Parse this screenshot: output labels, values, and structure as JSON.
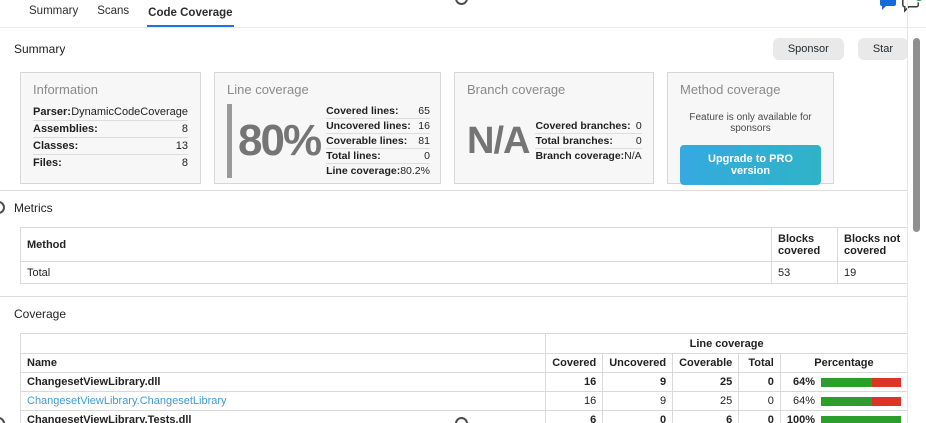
{
  "tabs": [
    {
      "label": "Summary",
      "active": false
    },
    {
      "label": "Scans",
      "active": false
    },
    {
      "label": "Code Coverage",
      "active": true
    }
  ],
  "summary_section": {
    "title": "Summary",
    "sponsor_button": "Sponsor",
    "star_button": "Star",
    "cards": {
      "information": {
        "title": "Information",
        "rows": [
          {
            "label": "Parser:",
            "value": "DynamicCodeCoverage"
          },
          {
            "label": "Assemblies:",
            "value": "8"
          },
          {
            "label": "Classes:",
            "value": "13"
          },
          {
            "label": "Files:",
            "value": "8"
          }
        ]
      },
      "line_coverage": {
        "title": "Line coverage",
        "big_value": "80%",
        "rows": [
          {
            "label": "Covered lines:",
            "value": "65"
          },
          {
            "label": "Uncovered lines:",
            "value": "16"
          },
          {
            "label": "Coverable lines:",
            "value": "81"
          },
          {
            "label": "Total lines:",
            "value": "0"
          },
          {
            "label": "Line coverage:",
            "value": "80.2%"
          }
        ]
      },
      "branch_coverage": {
        "title": "Branch coverage",
        "big_value": "N/A",
        "rows": [
          {
            "label": "Covered branches:",
            "value": "0"
          },
          {
            "label": "Total branches:",
            "value": "0"
          },
          {
            "label": "Branch coverage:",
            "value": "N/A"
          }
        ]
      },
      "method_coverage": {
        "title": "Method coverage",
        "notice": "Feature is only available for sponsors",
        "upgrade_button": "Upgrade to PRO version"
      }
    }
  },
  "metrics_section": {
    "title": "Metrics",
    "table": {
      "headers": [
        "Method",
        "Blocks covered",
        "Blocks not covered"
      ],
      "rows": [
        {
          "method": "Total",
          "blocks_covered": "53",
          "blocks_not_covered": "19"
        }
      ]
    }
  },
  "coverage_section": {
    "title": "Coverage",
    "table": {
      "group_header": "Line coverage",
      "headers": [
        "Name",
        "Covered",
        "Uncovered",
        "Coverable",
        "Total",
        "Percentage"
      ],
      "rows": [
        {
          "name": "ChangesetViewLibrary.dll",
          "type": "assembly",
          "covered": "16",
          "uncovered": "9",
          "coverable": "25",
          "total": "0",
          "percentage": "64%",
          "pct": 64
        },
        {
          "name": "ChangesetViewLibrary.ChangesetLibrary",
          "type": "class",
          "covered": "16",
          "uncovered": "9",
          "coverable": "25",
          "total": "0",
          "percentage": "64%",
          "pct": 64
        },
        {
          "name": "ChangesetViewLibrary.Tests.dll",
          "type": "assembly",
          "covered": "6",
          "uncovered": "0",
          "coverable": "6",
          "total": "0",
          "percentage": "100%",
          "pct": 100
        }
      ]
    }
  },
  "icons": {
    "comment_icon": "filled blue speech bubble",
    "add_comment_icon": "outlined speech bubble with green plus badge"
  },
  "colors": {
    "tab_accent": "#1a73e8",
    "link_blue": "#3f9bd8",
    "bar_green": "#2b9e2b",
    "bar_red": "#de3428",
    "upgrade_button": "#32aed4",
    "comment_icon_blue": "#1868dd",
    "badge_green": "#2da44e"
  }
}
